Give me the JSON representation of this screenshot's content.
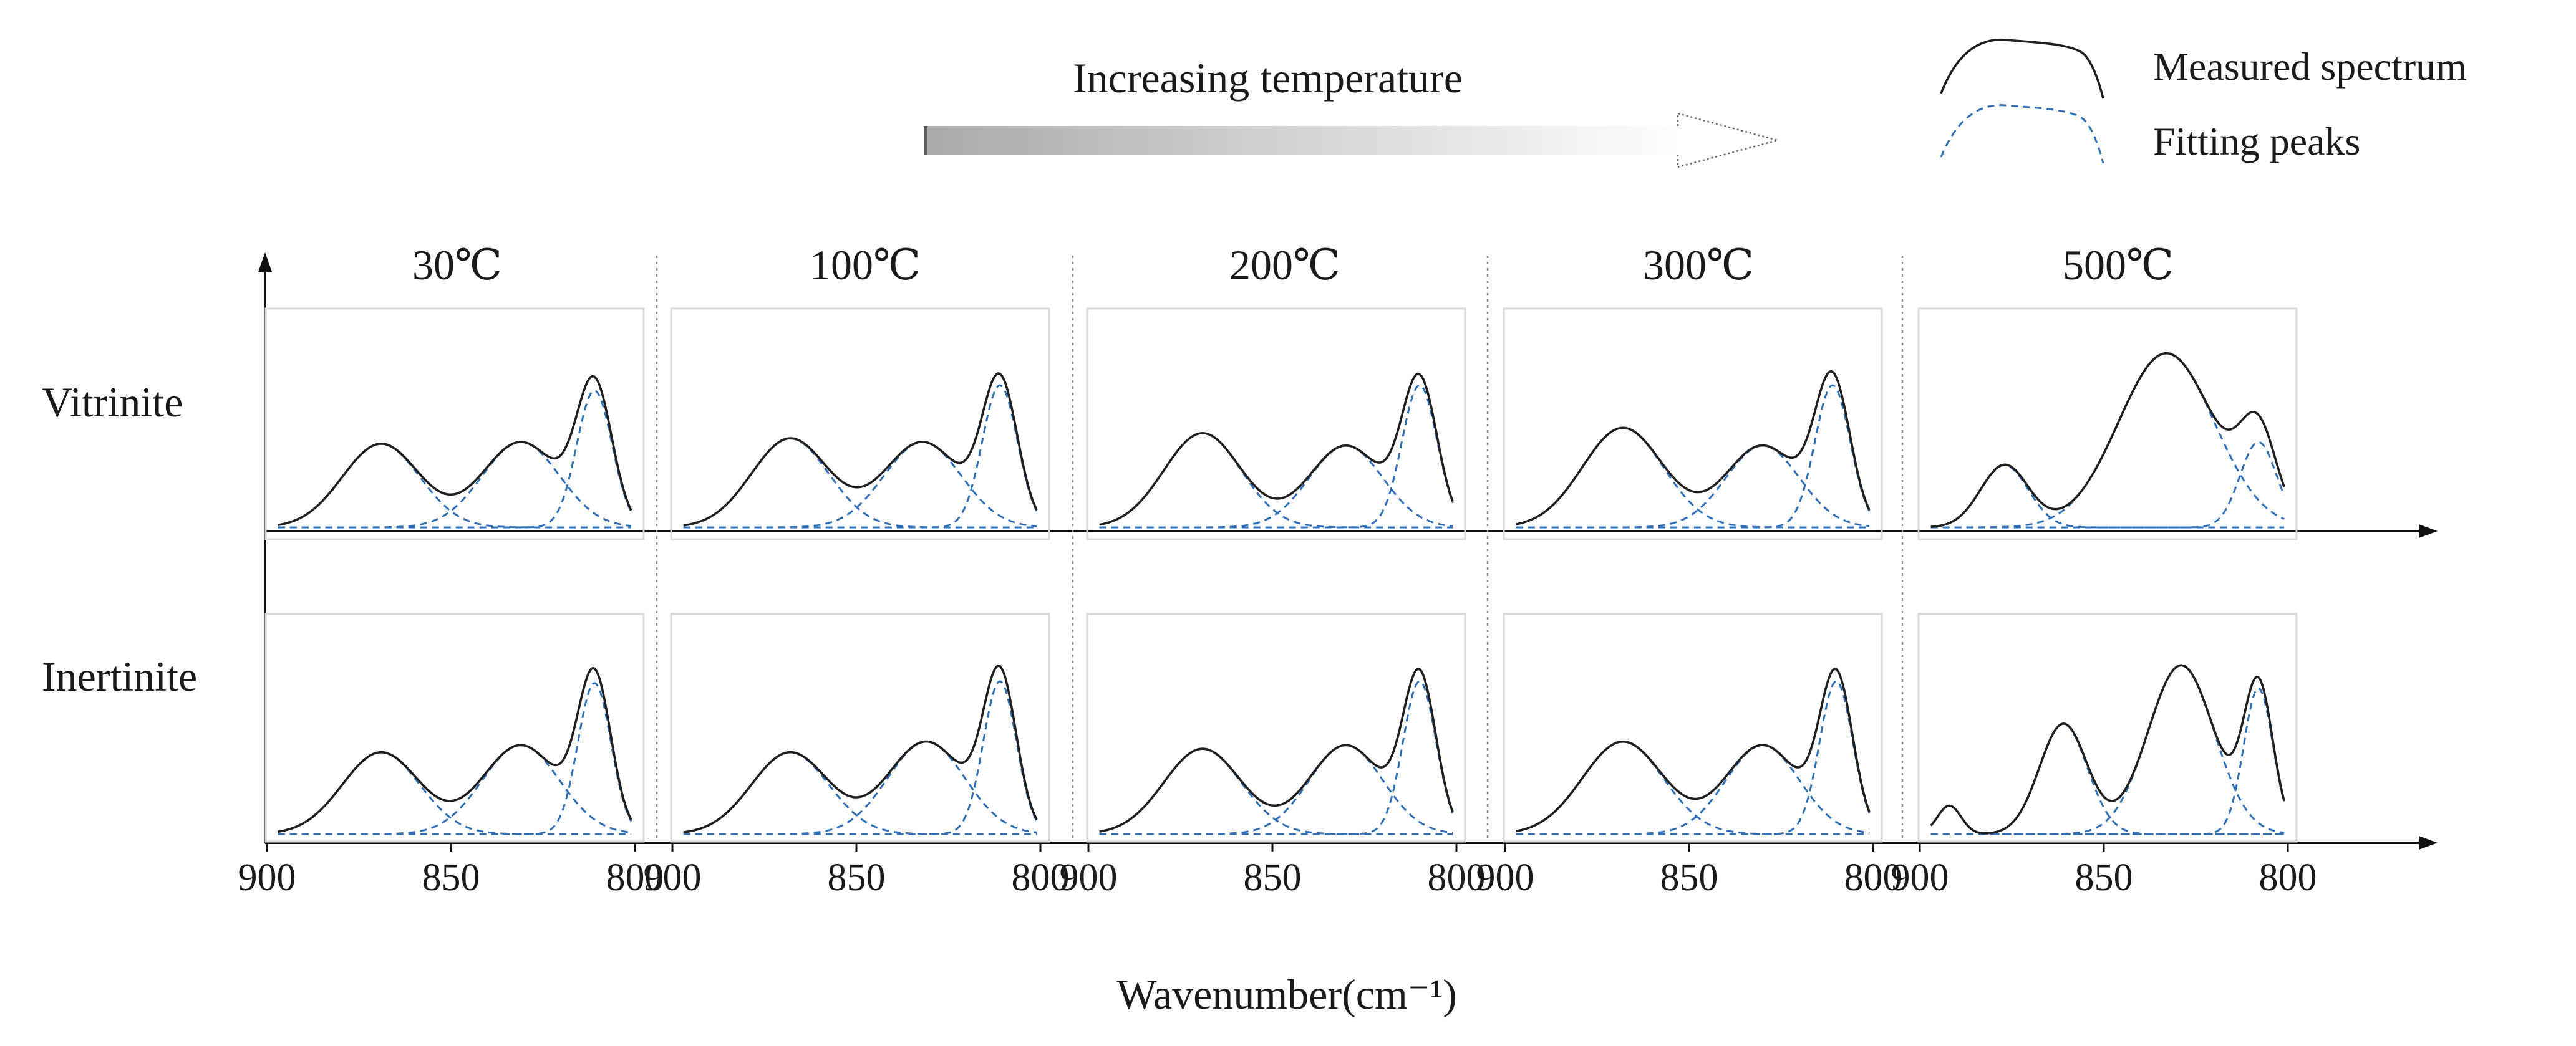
{
  "header": {
    "arrow_label": "Increasing temperature"
  },
  "legend": {
    "measured_label": "Measured spectrum",
    "fitting_label": "Fitting  peaks"
  },
  "colors": {
    "measured": "#1f1f1f",
    "fitting": "#2e6fb8"
  },
  "chart_data": {
    "type": "line",
    "title": "",
    "xlabel": "Wavenumber(cm⁻¹)",
    "ylabel": "",
    "xlim": [
      900,
      800
    ],
    "x_ticks": [
      "900",
      "850",
      "800"
    ],
    "temperatures": [
      "30℃",
      "100℃",
      "200℃",
      "300℃",
      "500℃"
    ],
    "macerals": [
      "Vitrinite",
      "Inertinite"
    ],
    "peak_model": "gaussian",
    "x_range_of_curves": [
      897,
      801
    ],
    "panels": [
      {
        "maceral": "Vitrinite",
        "temperature": "30℃",
        "peaks": [
          {
            "center": 869,
            "height": 0.47,
            "width": 10.5
          },
          {
            "center": 831,
            "height": 0.48,
            "width": 10.5
          },
          {
            "center": 811,
            "height": 0.77,
            "width": 4.8
          }
        ]
      },
      {
        "maceral": "Vitrinite",
        "temperature": "100℃",
        "peaks": [
          {
            "center": 868,
            "height": 0.5,
            "width": 10.5
          },
          {
            "center": 832,
            "height": 0.48,
            "width": 10.5
          },
          {
            "center": 811,
            "height": 0.8,
            "width": 4.8
          }
        ]
      },
      {
        "maceral": "Vitrinite",
        "temperature": "200℃",
        "peaks": [
          {
            "center": 869,
            "height": 0.53,
            "width": 10.5
          },
          {
            "center": 830,
            "height": 0.46,
            "width": 10
          },
          {
            "center": 810,
            "height": 0.8,
            "width": 4.8
          }
        ]
      },
      {
        "maceral": "Vitrinite",
        "temperature": "300℃",
        "peaks": [
          {
            "center": 868,
            "height": 0.56,
            "width": 11
          },
          {
            "center": 830,
            "height": 0.46,
            "width": 10
          },
          {
            "center": 811,
            "height": 0.8,
            "width": 4.8
          }
        ]
      },
      {
        "maceral": "Vitrinite",
        "temperature": "500℃",
        "peaks": [
          {
            "center": 877,
            "height": 0.35,
            "width": 6.5
          },
          {
            "center": 833,
            "height": 0.98,
            "width": 13
          },
          {
            "center": 808,
            "height": 0.48,
            "width": 5
          }
        ]
      },
      {
        "maceral": "Inertinite",
        "temperature": "30℃",
        "peaks": [
          {
            "center": 869,
            "height": 0.46,
            "width": 10.5
          },
          {
            "center": 831,
            "height": 0.5,
            "width": 10.5
          },
          {
            "center": 811,
            "height": 0.85,
            "width": 4.5
          }
        ]
      },
      {
        "maceral": "Inertinite",
        "temperature": "100℃",
        "peaks": [
          {
            "center": 868,
            "height": 0.46,
            "width": 10.5
          },
          {
            "center": 831,
            "height": 0.52,
            "width": 10.5
          },
          {
            "center": 811,
            "height": 0.86,
            "width": 4.5
          }
        ]
      },
      {
        "maceral": "Inertinite",
        "temperature": "200℃",
        "peaks": [
          {
            "center": 869,
            "height": 0.48,
            "width": 10.5
          },
          {
            "center": 830,
            "height": 0.5,
            "width": 10
          },
          {
            "center": 810,
            "height": 0.86,
            "width": 4.5
          }
        ]
      },
      {
        "maceral": "Inertinite",
        "temperature": "300℃",
        "peaks": [
          {
            "center": 868,
            "height": 0.52,
            "width": 11
          },
          {
            "center": 830,
            "height": 0.5,
            "width": 10
          },
          {
            "center": 810,
            "height": 0.86,
            "width": 4.5
          }
        ]
      },
      {
        "maceral": "Inertinite",
        "temperature": "500℃",
        "peaks": [
          {
            "center": 892,
            "height": 0.16,
            "width": 3.2
          },
          {
            "center": 861,
            "height": 0.62,
            "width": 6.5
          },
          {
            "center": 829,
            "height": 0.95,
            "width": 9
          },
          {
            "center": 808,
            "height": 0.82,
            "width": 4
          }
        ]
      }
    ]
  }
}
